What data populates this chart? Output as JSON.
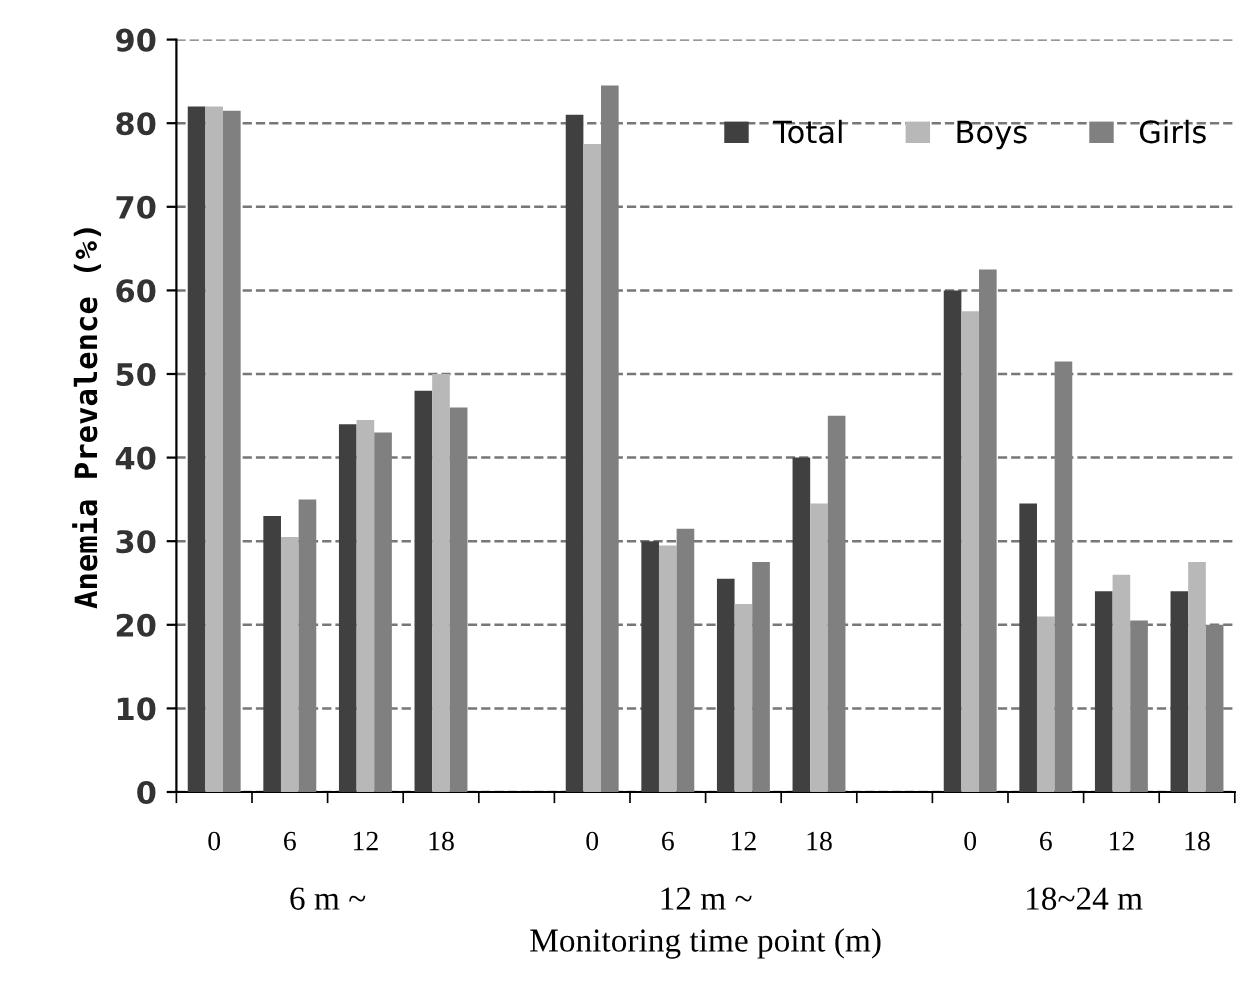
{
  "chart_data": {
    "type": "bar",
    "xlabel": "Monitoring time point (m)",
    "ylabel": "Anemia Prevalence (%)",
    "categories": [
      "0",
      "6",
      "12",
      "18",
      null,
      "0",
      "6",
      "12",
      "18",
      null,
      "0",
      "6",
      "12",
      "18"
    ],
    "series": [
      {
        "name": "Total",
        "color": "#404040",
        "values": [
          82,
          33,
          44,
          48,
          null,
          81,
          30,
          25.5,
          40,
          null,
          60,
          34.5,
          24,
          24
        ]
      },
      {
        "name": "Boys",
        "color": "#b8b8b8",
        "values": [
          82,
          30.5,
          44.5,
          50,
          null,
          77.5,
          29.5,
          22.5,
          34.5,
          null,
          57.5,
          21,
          26,
          27.5
        ]
      },
      {
        "name": "Girls",
        "color": "#808080",
        "values": [
          81.5,
          35,
          43,
          46,
          null,
          84.5,
          31.5,
          27.5,
          45,
          null,
          62.5,
          51.5,
          20.5,
          20
        ]
      }
    ],
    "annotations": [
      "6 m ~",
      "12 m ~",
      "18~24 m"
    ],
    "ylim": [
      0,
      90
    ],
    "yticks": [
      0,
      10,
      20,
      30,
      40,
      50,
      60,
      70,
      80,
      90
    ],
    "grid": "y",
    "legend": "top right"
  }
}
